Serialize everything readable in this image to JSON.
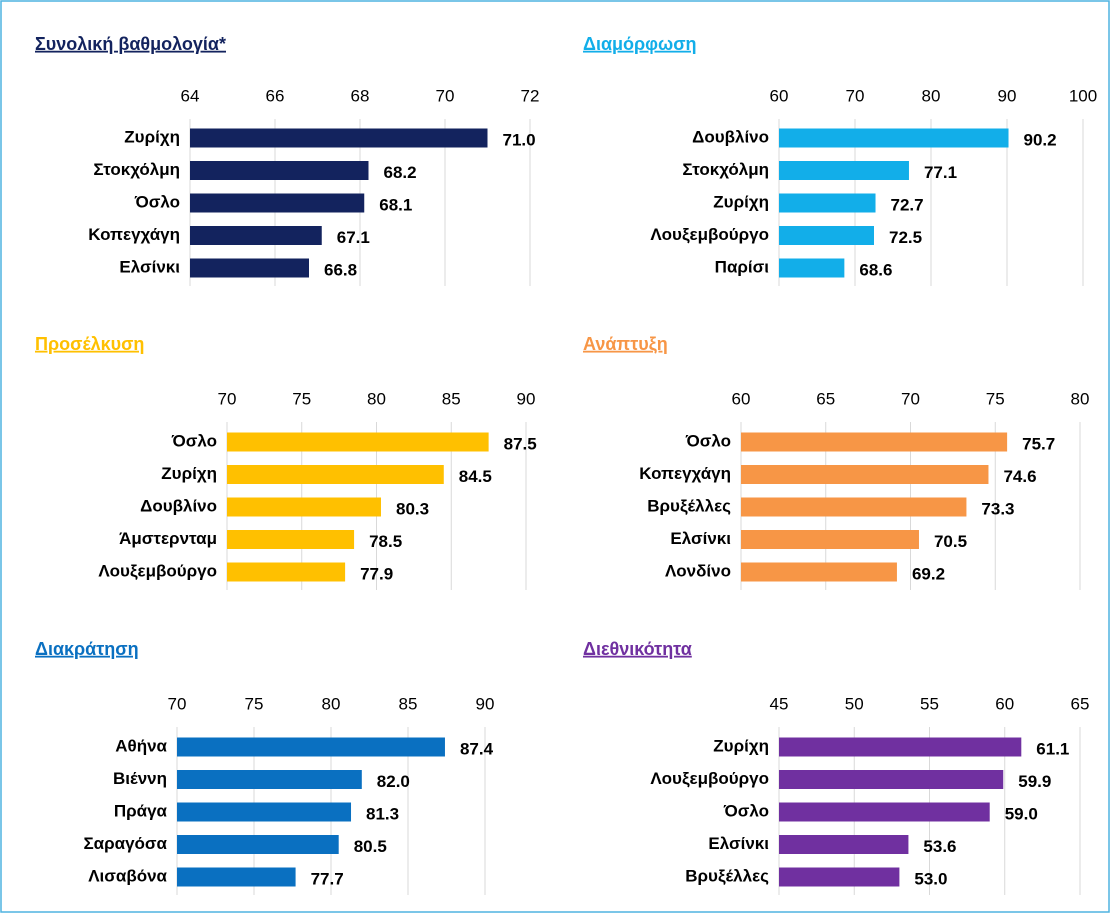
{
  "chart_data": [
    {
      "type": "bar",
      "title": "Συνολική βαθμολογία*",
      "color": "#13235e",
      "categories": [
        "Ζυρίχη",
        "Στοκχόλμη",
        "Όσλο",
        "Κοπεγχάγη",
        "Ελσίνκι"
      ],
      "values": [
        71.0,
        68.2,
        68.1,
        67.1,
        66.8
      ],
      "value_labels": [
        "71.0",
        "68.2",
        "68.1",
        "67.1",
        "66.8"
      ],
      "xlim": [
        64,
        72
      ],
      "xticks": [
        64,
        66,
        68,
        70,
        72
      ],
      "grid": true
    },
    {
      "type": "bar",
      "title": "Διαμόρφωση",
      "color": "#12aee9",
      "categories": [
        "Δουβλίνο",
        "Στοκχόλμη",
        "Ζυρίχη",
        "Λουξεμβούργο",
        "Παρίσι"
      ],
      "values": [
        90.2,
        77.1,
        72.7,
        72.5,
        68.6
      ],
      "value_labels": [
        "90.2",
        "77.1",
        "72.7",
        "72.5",
        "68.6"
      ],
      "xlim": [
        60,
        100
      ],
      "xticks": [
        60,
        70,
        80,
        90,
        100
      ],
      "grid": true
    },
    {
      "type": "bar",
      "title": "Προσέλκυση",
      "color": "#ffc000",
      "categories": [
        "Όσλο",
        "Ζυρίχη",
        "Δουβλίνο",
        "Άμστερνταμ",
        "Λουξεμβούργο"
      ],
      "values": [
        87.5,
        84.5,
        80.3,
        78.5,
        77.9
      ],
      "value_labels": [
        "87.5",
        "84.5",
        "80.3",
        "78.5",
        "77.9"
      ],
      "xlim": [
        70,
        90
      ],
      "xticks": [
        70,
        75,
        80,
        85,
        90
      ],
      "grid": true
    },
    {
      "type": "bar",
      "title": "Ανάπτυξη",
      "color": "#f79646",
      "categories": [
        "Όσλο",
        "Κοπεγχάγη",
        "Βρυξέλλες",
        "Ελσίνκι",
        "Λονδίνο"
      ],
      "values": [
        75.7,
        74.6,
        73.3,
        70.5,
        69.2
      ],
      "value_labels": [
        "75.7",
        "74.6",
        "73.3",
        "70.5",
        "69.2"
      ],
      "xlim": [
        60,
        80
      ],
      "xticks": [
        60,
        65,
        70,
        75,
        80
      ],
      "grid": true
    },
    {
      "type": "bar",
      "title": "Διακράτηση",
      "color": "#0a70c1",
      "categories": [
        "Αθήνα",
        "Βιέννη",
        "Πράγα",
        "Σαραγόσα",
        "Λισαβόνα"
      ],
      "values": [
        87.4,
        82.0,
        81.3,
        80.5,
        77.7
      ],
      "value_labels": [
        "87.4",
        "82.0",
        "81.3",
        "80.5",
        "77.7"
      ],
      "xlim": [
        70,
        90
      ],
      "xticks": [
        70,
        75,
        80,
        85,
        90
      ],
      "grid": true
    },
    {
      "type": "bar",
      "title": "Διεθνικότητα",
      "color": "#7030a0",
      "categories": [
        "Ζυρίχη",
        "Λουξεμβούργο",
        "Όσλο",
        "Ελσίνκι",
        "Βρυξέλλες"
      ],
      "values": [
        61.1,
        59.9,
        59.0,
        53.6,
        53.0
      ],
      "value_labels": [
        "61.1",
        "59.9",
        "59.0",
        "53.6",
        "53.0"
      ],
      "xlim": [
        45,
        65
      ],
      "xticks": [
        45,
        50,
        55,
        60,
        65
      ],
      "grid": true
    }
  ]
}
